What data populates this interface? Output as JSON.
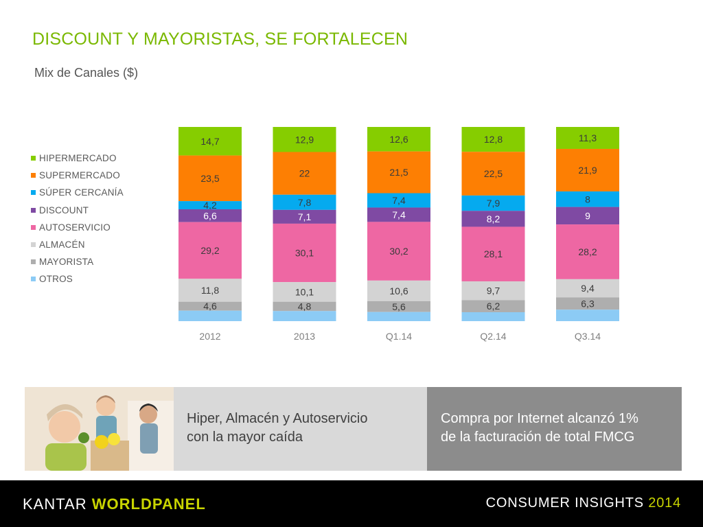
{
  "title": "DISCOUNT Y MAYORISTAS, SE FORTALECEN",
  "subtitle": "Mix de Canales ($)",
  "chart_data": {
    "type": "bar",
    "stacked": true,
    "legend_position": "left",
    "grid": false,
    "categories": [
      "2012",
      "2013",
      "Q1.14",
      "Q2.14",
      "Q3.14"
    ],
    "series": [
      {
        "name": "HIPERMERCADO",
        "color": "#86cd00",
        "values": [
          14.7,
          12.9,
          12.6,
          12.8,
          11.3
        ],
        "labels": [
          "14,7",
          "12,9",
          "12,6",
          "12,8",
          "11,3"
        ]
      },
      {
        "name": "SUPERMERCADO",
        "color": "#fd7f03",
        "values": [
          23.5,
          22,
          21.5,
          22.5,
          21.9
        ],
        "labels": [
          "23,5",
          "22",
          "21,5",
          "22,5",
          "21,9"
        ]
      },
      {
        "name": "SÚPER CERCANÍA",
        "color": "#05aaef",
        "values": [
          4.2,
          7.8,
          7.4,
          7.9,
          8
        ],
        "labels": [
          "4,2",
          "7,8",
          "7,4",
          "7,9",
          "8"
        ]
      },
      {
        "name": "DISCOUNT",
        "color": "#7f4aa3",
        "values": [
          6.6,
          7.1,
          7.4,
          8.2,
          9
        ],
        "labels": [
          "6,6",
          "7,1",
          "7,4",
          "8,2",
          "9"
        ]
      },
      {
        "name": "AUTOSERVICIO",
        "color": "#ee67a3",
        "values": [
          29.2,
          30.1,
          30.2,
          28.1,
          28.2
        ],
        "labels": [
          "29,2",
          "30,1",
          "30,2",
          "28,1",
          "28,2"
        ]
      },
      {
        "name": "ALMACÉN",
        "color": "#d3d3d3",
        "values": [
          11.8,
          10.1,
          10.6,
          9.7,
          9.4
        ],
        "labels": [
          "11,8",
          "10,1",
          "10,6",
          "9,7",
          "9,4"
        ]
      },
      {
        "name": "MAYORISTA",
        "color": "#aeaeae",
        "values": [
          4.6,
          4.8,
          5.6,
          6.2,
          6.3
        ],
        "labels": [
          "4,6",
          "4,8",
          "5,6",
          "6,2",
          "6,3"
        ]
      },
      {
        "name": "OTROS",
        "color": "#8ccbf5",
        "values": [
          5.4,
          5.2,
          4.7,
          4.6,
          5.9
        ],
        "labels": [
          "",
          "",
          "",
          "",
          ""
        ]
      }
    ],
    "label_colors": {
      "HIPERMERCADO": "#3a3a3a",
      "SUPERMERCADO": "#3a3a3a",
      "SÚPER CERCANÍA": "#3a3a3a",
      "DISCOUNT": "#ffffff",
      "AUTOSERVICIO": "#3a3a3a",
      "ALMACÉN": "#3a3a3a",
      "MAYORISTA": "#3a3a3a",
      "OTROS": "#3a3a3a"
    },
    "tick_label_color": "#7f7f7f"
  },
  "banner": {
    "left_lines": [
      "Hiper, Almacén y Autoservicio",
      "con la mayor caída"
    ],
    "right_lines": [
      "Compra por Internet alcanzó 1%",
      "de la facturación de total FMCG"
    ]
  },
  "footer": {
    "brand_part1": "KANTAR",
    "brand_part2": "WORLDPANEL",
    "insights_label": "CONSUMER INSIGHTS",
    "insights_year": "2014"
  }
}
